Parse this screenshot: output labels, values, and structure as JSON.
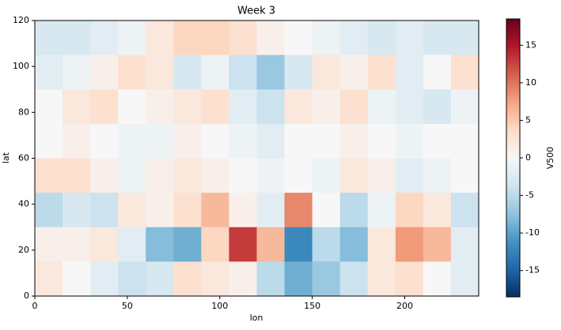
{
  "chart_data": {
    "type": "heatmap",
    "title": "Week 3",
    "x_label": "lon",
    "y_label": "lat",
    "colorbar_label": "V500",
    "colormap": "RdBu_r",
    "x": [
      7.5,
      22.5,
      37.5,
      52.5,
      67.5,
      82.5,
      97.5,
      112.5,
      127.5,
      142.5,
      157.5,
      172.5,
      187.5,
      202.5,
      217.5,
      232.5
    ],
    "y": [
      112.5,
      97.5,
      82.5,
      67.5,
      52.5,
      37.5,
      22.5,
      7.5
    ],
    "values": [
      [
        -3,
        -3,
        -2,
        -1,
        2,
        4,
        4,
        3,
        1,
        0,
        -1,
        -2,
        -3,
        -2,
        -3,
        -3
      ],
      [
        -2,
        -1,
        1,
        3,
        2,
        -3,
        -1,
        -4,
        -7,
        -3,
        2,
        1,
        3,
        -2,
        0,
        3
      ],
      [
        0,
        2,
        3,
        0,
        1,
        2,
        3,
        -2,
        -4,
        2,
        1,
        3,
        -1,
        -2,
        -3,
        -1
      ],
      [
        0,
        1,
        0,
        -1,
        -1,
        1,
        0,
        -1,
        -2,
        0,
        0,
        1,
        0,
        -1,
        0,
        0
      ],
      [
        3,
        3,
        1,
        -1,
        1,
        2,
        1,
        0,
        -1,
        0,
        -1,
        2,
        1,
        -2,
        -1,
        0
      ],
      [
        -5,
        -3,
        -4,
        2,
        1,
        3,
        6,
        1,
        -2,
        9,
        0,
        -5,
        -1,
        4,
        2,
        -4
      ],
      [
        1,
        1,
        2,
        -2,
        -8,
        -9,
        4,
        13,
        6,
        -12,
        -5,
        -8,
        2,
        8,
        6,
        -2
      ],
      [
        2,
        0,
        -2,
        -4,
        -3,
        3,
        2,
        1,
        -5,
        -9,
        -7,
        -4,
        2,
        3,
        0,
        -2
      ]
    ],
    "xlim": [
      0,
      240
    ],
    "ylim": [
      0,
      120
    ],
    "xticks": [
      0,
      50,
      100,
      150,
      200
    ],
    "yticks": [
      0,
      20,
      40,
      60,
      80,
      100,
      120
    ],
    "clim": [
      -18.5,
      18.5
    ],
    "cticks": [
      -15,
      -10,
      -5,
      0,
      5,
      10,
      15
    ]
  }
}
